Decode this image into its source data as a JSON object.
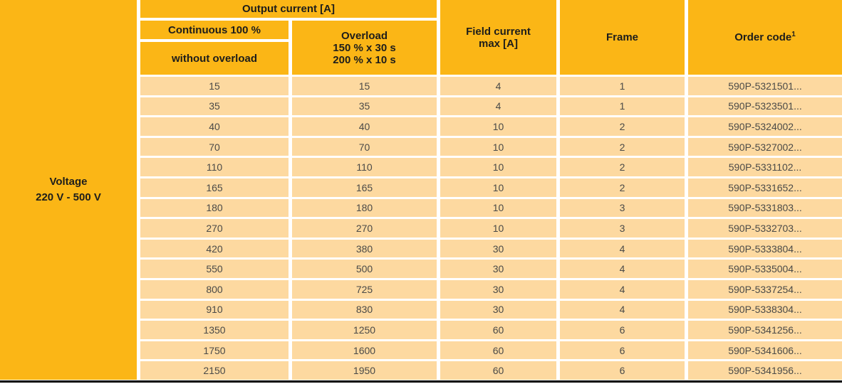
{
  "colors": {
    "header_bg": "#fbb616",
    "row_bg": "#fdd9a0",
    "header_text": "#1d1d1b",
    "cell_text": "#4a4a48",
    "separator": "#ffffff",
    "bottom_rule": "#000000"
  },
  "table": {
    "voltage_label": "Voltage",
    "voltage_range": "220 V - 500 V",
    "headers": {
      "output_current_group": "Output current [A]",
      "continuous": "Continuous 100 %",
      "continuous_sub": "without overload",
      "overload_line1": "Overload",
      "overload_line2": "150 % x 30 s",
      "overload_line3": "200 % x 10 s",
      "field_current_line1": "Field current",
      "field_current_line2": "max [A]",
      "frame": "Frame",
      "order_code": "Order code",
      "order_code_sup": "1"
    },
    "rows": [
      {
        "continuous": "15",
        "overload": "15",
        "field": "4",
        "frame": "1",
        "order": "590P-5321501..."
      },
      {
        "continuous": "35",
        "overload": "35",
        "field": "4",
        "frame": "1",
        "order": "590P-5323501..."
      },
      {
        "continuous": "40",
        "overload": "40",
        "field": "10",
        "frame": "2",
        "order": "590P-5324002..."
      },
      {
        "continuous": "70",
        "overload": "70",
        "field": "10",
        "frame": "2",
        "order": "590P-5327002..."
      },
      {
        "continuous": "110",
        "overload": "110",
        "field": "10",
        "frame": "2",
        "order": "590P-5331102..."
      },
      {
        "continuous": "165",
        "overload": "165",
        "field": "10",
        "frame": "2",
        "order": "590P-5331652..."
      },
      {
        "continuous": "180",
        "overload": "180",
        "field": "10",
        "frame": "3",
        "order": "590P-5331803..."
      },
      {
        "continuous": "270",
        "overload": "270",
        "field": "10",
        "frame": "3",
        "order": "590P-5332703..."
      },
      {
        "continuous": "420",
        "overload": "380",
        "field": "30",
        "frame": "4",
        "order": "590P-5333804..."
      },
      {
        "continuous": "550",
        "overload": "500",
        "field": "30",
        "frame": "4",
        "order": "590P-5335004..."
      },
      {
        "continuous": "800",
        "overload": "725",
        "field": "30",
        "frame": "4",
        "order": "590P-5337254..."
      },
      {
        "continuous": "910",
        "overload": "830",
        "field": "30",
        "frame": "4",
        "order": "590P-5338304..."
      },
      {
        "continuous": "1350",
        "overload": "1250",
        "field": "60",
        "frame": "6",
        "order": "590P-5341256..."
      },
      {
        "continuous": "1750",
        "overload": "1600",
        "field": "60",
        "frame": "6",
        "order": "590P-5341606..."
      },
      {
        "continuous": "2150",
        "overload": "1950",
        "field": "60",
        "frame": "6",
        "order": "590P-5341956..."
      }
    ]
  }
}
